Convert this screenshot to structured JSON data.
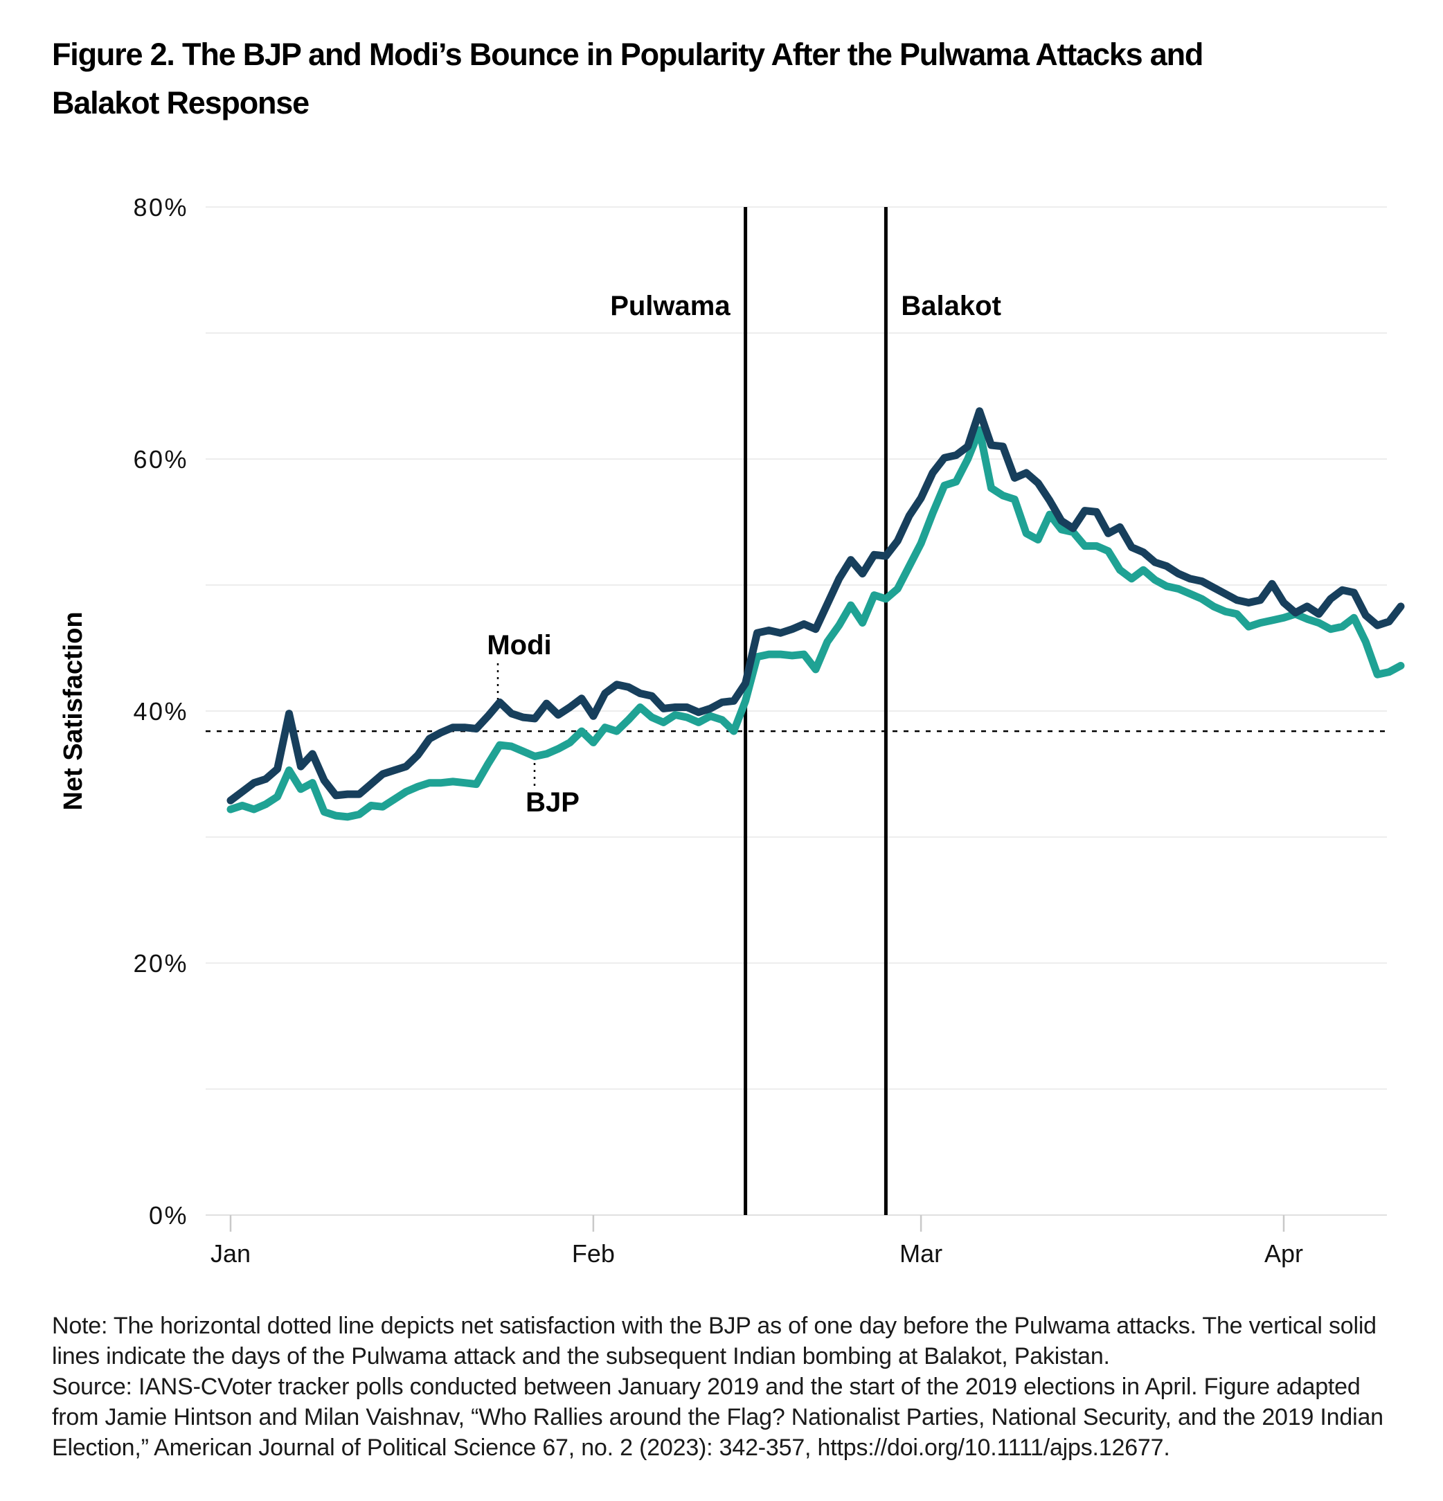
{
  "figure": {
    "title_line1": "Figure 2. The BJP and Modi’s Bounce in Popularity After the Pulwama Attacks and",
    "title_line2": "Balakot Response",
    "note": "Note: The horizontal dotted line depicts net satisfaction with the BJP as of one day before the Pulwama attacks. The vertical solid lines indicate the days of the Pulwama attack and the subsequent Indian bombing at Balakot, Pakistan.",
    "source": "Source: IANS-CVoter tracker polls conducted between January 2019 and the start of the 2019 elections in April. Figure adapted from Jamie Hintson and Milan Vaishnav, “Who Rallies around the Flag? Nationalist Parties, National Security, and the 2019 Indian Election,” American Journal of Political Science 67, no. 2 (2023): 342-357, https://doi.org/10.1111/ajps.12677."
  },
  "colors": {
    "modi_line": "#173f5c",
    "bjp_line": "#1fa294",
    "grid": "#ededed",
    "axis_line": "#e0e0e0",
    "tick": "#c9c9c9",
    "annotation": "#000000",
    "text": "#111111"
  },
  "chart_data": {
    "type": "line",
    "title": "Figure 2. The BJP and Modi’s Bounce in Popularity After the Pulwama Attacks and Balakot Response",
    "xlabel": "",
    "ylabel": "Net Satisfaction",
    "ylim": [
      0,
      80
    ],
    "grid_step": 10,
    "grid": "horizontal-only",
    "legend_position": "inline-annotations",
    "yticks": [
      {
        "value": 80,
        "label": "80%"
      },
      {
        "value": 60,
        "label": "60%"
      },
      {
        "value": 40,
        "label": "40%"
      },
      {
        "value": 20,
        "label": "20%"
      },
      {
        "value": 0,
        "label": "0%"
      }
    ],
    "xticks": [
      {
        "label": "Jan",
        "day": 0
      },
      {
        "label": "Feb",
        "day": 31
      },
      {
        "label": "Mar",
        "day": 59
      },
      {
        "label": "Apr",
        "day": 90
      }
    ],
    "x_unit_days_from": "Jan 1",
    "reference_line": {
      "value": 38.4,
      "style": "dotted"
    },
    "events": [
      {
        "label": "Pulwama",
        "day": 44,
        "label_side": "left"
      },
      {
        "label": "Balakot",
        "day": 56,
        "label_side": "right"
      }
    ],
    "series": [
      {
        "name": "Modi",
        "color": "#173f5c",
        "values": [
          32.9,
          33.6,
          34.3,
          34.6,
          35.4,
          39.8,
          35.6,
          36.6,
          34.5,
          33.3,
          33.4,
          33.4,
          34.2,
          35.0,
          35.3,
          35.6,
          36.5,
          37.8,
          38.3,
          38.7,
          38.7,
          38.6,
          39.6,
          40.7,
          39.8,
          39.5,
          39.4,
          40.6,
          39.7,
          40.3,
          41.0,
          39.6,
          41.4,
          42.1,
          41.9,
          41.4,
          41.2,
          40.2,
          40.3,
          40.3,
          39.9,
          40.2,
          40.7,
          40.8,
          42.2,
          46.2,
          46.4,
          46.2,
          46.5,
          46.9,
          46.5,
          48.5,
          50.5,
          52.0,
          50.9,
          52.4,
          52.3,
          53.5,
          55.5,
          56.9,
          58.9,
          60.1,
          60.3,
          61.0,
          63.8,
          61.1,
          61.0,
          58.5,
          58.9,
          58.1,
          56.7,
          55.1,
          54.5,
          55.9,
          55.8,
          54.1,
          54.6,
          53.0,
          52.6,
          51.8,
          51.5,
          50.9,
          50.5,
          50.3,
          49.8,
          49.3,
          48.8,
          48.6,
          48.8,
          50.1,
          48.6,
          47.8,
          48.3,
          47.7,
          48.9,
          49.6,
          49.4,
          47.6,
          46.8,
          47.1,
          48.3
        ]
      },
      {
        "name": "BJP",
        "color": "#1fa294",
        "values": [
          32.2,
          32.5,
          32.2,
          32.6,
          33.2,
          35.3,
          33.8,
          34.3,
          32.0,
          31.7,
          31.6,
          31.8,
          32.5,
          32.4,
          33.0,
          33.6,
          34.0,
          34.3,
          34.3,
          34.4,
          34.3,
          34.2,
          35.8,
          37.3,
          37.2,
          36.8,
          36.4,
          36.6,
          37.0,
          37.5,
          38.4,
          37.5,
          38.7,
          38.4,
          39.3,
          40.3,
          39.5,
          39.1,
          39.7,
          39.5,
          39.1,
          39.6,
          39.3,
          38.4,
          40.8,
          44.3,
          44.5,
          44.5,
          44.4,
          44.5,
          43.3,
          45.5,
          46.8,
          48.4,
          47.0,
          49.2,
          48.9,
          49.7,
          51.5,
          53.3,
          55.7,
          57.9,
          58.2,
          60.0,
          62.3,
          57.7,
          57.1,
          56.8,
          54.1,
          53.6,
          55.6,
          54.4,
          54.2,
          53.1,
          53.1,
          52.7,
          51.2,
          50.5,
          51.2,
          50.4,
          49.9,
          49.7,
          49.3,
          48.9,
          48.3,
          47.9,
          47.7,
          46.7,
          47.0,
          47.2,
          47.4,
          47.7,
          47.3,
          47.0,
          46.5,
          46.7,
          47.4,
          45.5,
          42.9,
          43.1,
          43.6
        ]
      }
    ],
    "series_labels": [
      {
        "text": "Modi",
        "text_x": 750,
        "text_y": 945,
        "leader_x": 719,
        "leader_y1": 958,
        "leader_y2": 1010
      },
      {
        "text": "BJP",
        "text_x": 798,
        "text_y": 1172,
        "leader_x": 772,
        "leader_y1": 1102,
        "leader_y2": 1138
      }
    ]
  }
}
